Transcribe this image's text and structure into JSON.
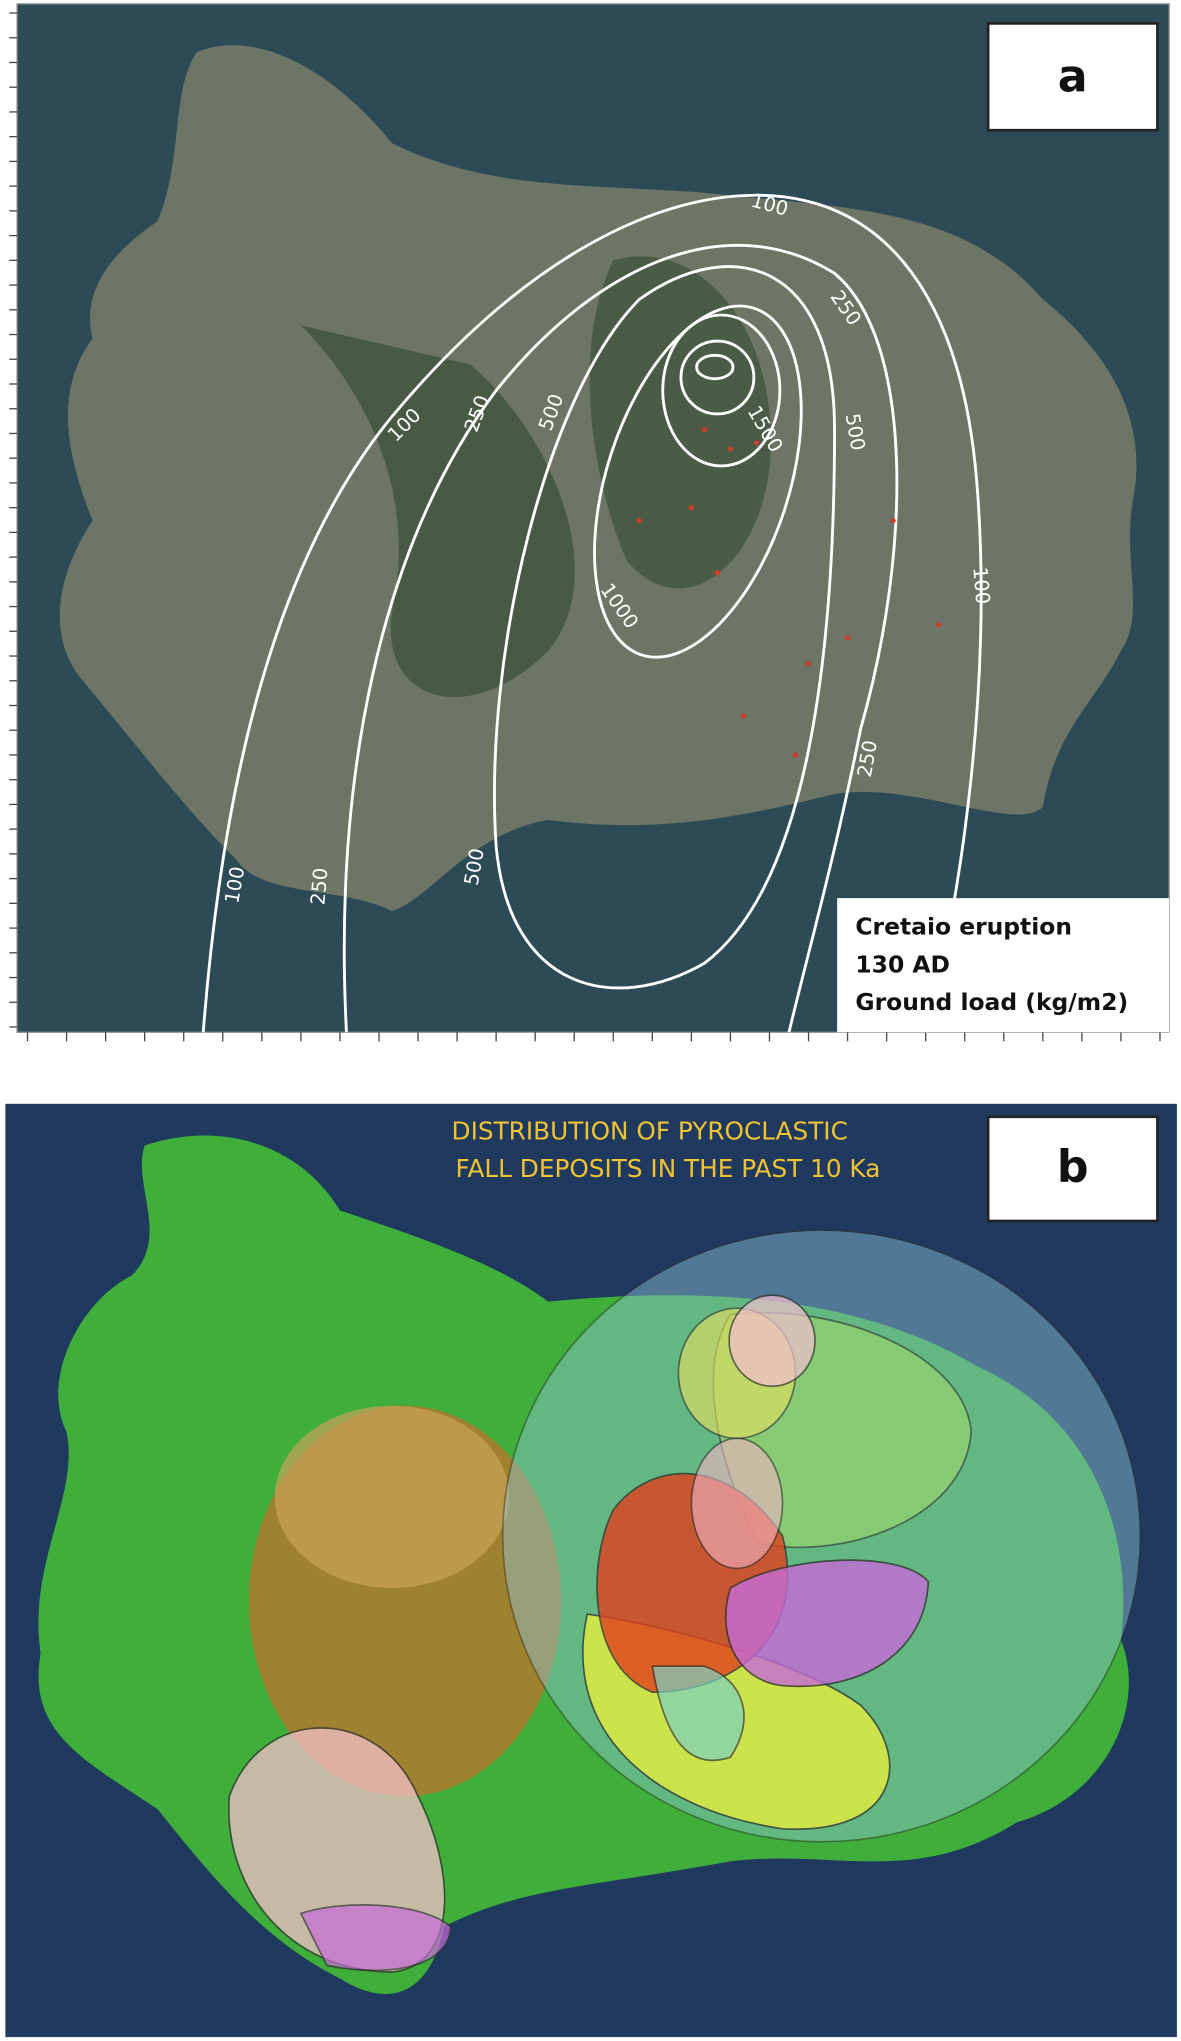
{
  "panels": [
    {
      "label": "a",
      "contour_labels": [
        "100",
        "250",
        "500",
        "1500",
        "1000",
        "500",
        "250",
        "100",
        "100",
        "250",
        "100",
        "250",
        "500"
      ],
      "legend": [
        "Cretaio eruption",
        "130 AD",
        "Ground load (kg/m2)"
      ]
    },
    {
      "label": "b",
      "title": [
        "DISTRIBUTION OF PYROCLASTIC",
        "FALL DEPOSITS IN THE PAST 10 Ka"
      ]
    }
  ]
}
